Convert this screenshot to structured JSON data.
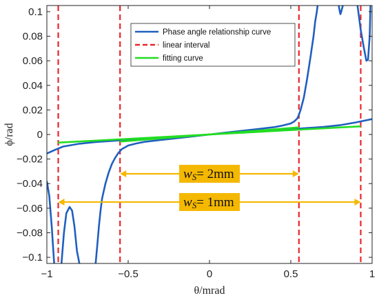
{
  "chart_data": {
    "type": "line",
    "title": "",
    "xlabel": "θ/mrad",
    "ylabel": "ϕ/rad",
    "xlim": [
      -1,
      1
    ],
    "ylim": [
      -0.105,
      0.105
    ],
    "x_ticks": [
      -1,
      -0.5,
      0,
      0.5,
      1
    ],
    "x_tick_labels": [
      "−1",
      "−0.5",
      "0",
      "0.5",
      "1"
    ],
    "y_ticks": [
      -0.1,
      -0.08,
      -0.06,
      -0.04,
      -0.02,
      0,
      0.02,
      0.04,
      0.06,
      0.08,
      0.1
    ],
    "y_tick_labels": [
      "−0.1",
      "−0.08",
      "−0.06",
      "−0.04",
      "−0.02",
      "0",
      "0.02",
      "0.04",
      "0.06",
      "0.08",
      "0.1"
    ],
    "grid": false,
    "legend_position": "top-right",
    "colors": {
      "phase": "#1f5fbf",
      "linear": "#e8262b",
      "fitting": "#22dd22",
      "annotation": "#f5b800"
    },
    "series": [
      {
        "name": "Phase angle relationship curve",
        "style": "solid",
        "segments": [
          {
            "x": [
              -1.0,
              -0.95,
              -0.9,
              -0.8,
              -0.7,
              -0.6,
              -0.5,
              -0.4,
              -0.3,
              -0.2,
              -0.1,
              0.0,
              0.1,
              0.2,
              0.3,
              0.4,
              0.5,
              0.6,
              0.7,
              0.8,
              0.9,
              1.0
            ],
            "y": [
              -0.0155,
              -0.0125,
              -0.0098,
              -0.0075,
              -0.0062,
              -0.0052,
              -0.0043,
              -0.0035,
              -0.0027,
              -0.002,
              -0.001,
              0.0,
              0.001,
              0.002,
              0.0027,
              0.0035,
              0.0043,
              0.0052,
              0.0062,
              0.0075,
              0.0098,
              0.0125
            ]
          },
          {
            "x": [
              -1.0,
              -0.985,
              -0.97,
              -0.96,
              -0.955
            ],
            "y": [
              -0.038,
              -0.05,
              -0.075,
              -0.095,
              -0.105
            ]
          },
          {
            "x": [
              -0.91,
              -0.895,
              -0.88,
              -0.86,
              -0.845,
              -0.83,
              -0.815,
              -0.8
            ],
            "y": [
              -0.105,
              -0.08,
              -0.064,
              -0.059,
              -0.062,
              -0.075,
              -0.095,
              -0.105
            ]
          },
          {
            "x": [
              -0.7,
              -0.69,
              -0.68,
              -0.67,
              -0.66,
              -0.64,
              -0.62,
              -0.6,
              -0.58,
              -0.56,
              -0.54,
              -0.5,
              -0.45,
              -0.4,
              -0.3,
              -0.2,
              -0.1,
              0.0,
              0.1,
              0.2,
              0.3,
              0.4,
              0.45,
              0.5,
              0.52,
              0.54,
              0.55,
              0.56,
              0.58,
              0.6,
              0.62,
              0.64,
              0.65,
              0.66,
              0.665
            ],
            "y": [
              -0.105,
              -0.09,
              -0.075,
              -0.062,
              -0.052,
              -0.04,
              -0.031,
              -0.024,
              -0.019,
              -0.015,
              -0.012,
              -0.009,
              -0.0073,
              -0.006,
              -0.0045,
              -0.003,
              -0.0015,
              0.0,
              0.0015,
              0.003,
              0.0045,
              0.006,
              0.0073,
              0.009,
              0.0105,
              0.013,
              0.016,
              0.02,
              0.03,
              0.045,
              0.062,
              0.08,
              0.092,
              0.1,
              0.105
            ]
          },
          {
            "x": [
              0.795,
              0.8,
              0.805,
              0.81,
              0.82
            ],
            "y": [
              0.105,
              0.101,
              0.098,
              0.1,
              0.105
            ]
          },
          {
            "x": [
              0.91,
              0.93,
              0.95,
              0.965,
              0.975,
              0.985,
              0.99
            ],
            "y": [
              0.105,
              0.085,
              0.07,
              0.06,
              0.061,
              0.08,
              0.105
            ]
          }
        ]
      },
      {
        "name": "linear interval",
        "style": "dashed",
        "x_positions": [
          -0.93,
          -0.55,
          0.55,
          0.93
        ]
      },
      {
        "name": "fitting curve",
        "style": "solid",
        "segments": [
          {
            "x": [
              -0.93,
              0.93
            ],
            "y": [
              -0.0066,
              0.0066
            ]
          },
          {
            "x": [
              -0.55,
              0.55
            ],
            "y": [
              -0.0058,
              0.0058
            ]
          }
        ]
      }
    ],
    "annotations": [
      {
        "label_main": "w",
        "label_sub": "S",
        "label_rest": "= 2mm",
        "x_start": -0.55,
        "x_end": 0.55,
        "y": -0.032
      },
      {
        "label_main": "w",
        "label_sub": "S",
        "label_rest": "= 1mm",
        "x_start": -0.93,
        "x_end": 0.93,
        "y": -0.055
      }
    ]
  }
}
